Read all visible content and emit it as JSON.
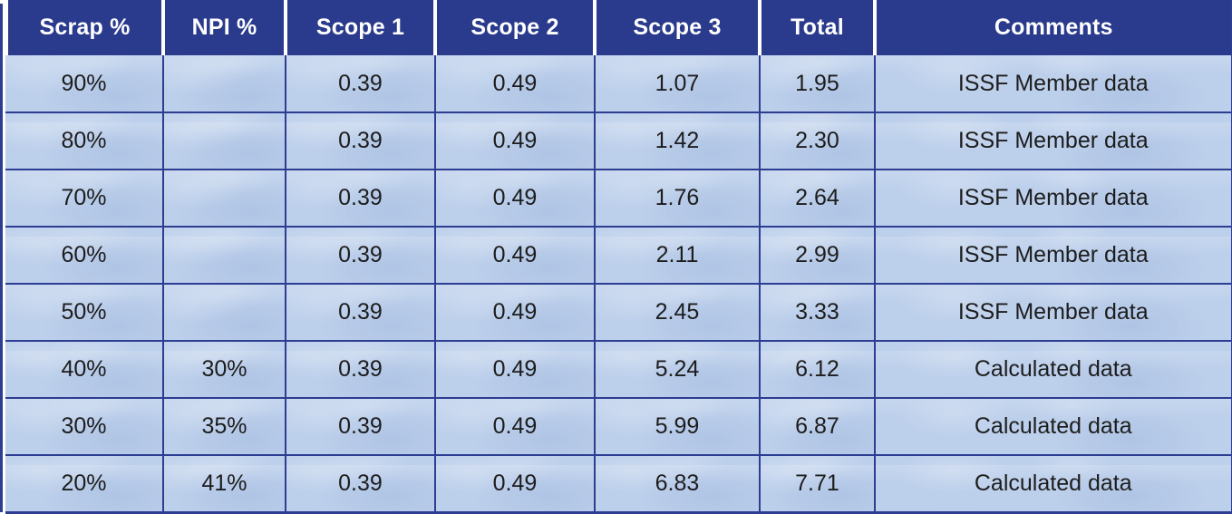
{
  "colors": {
    "page_bg": "#ffffff",
    "header_bg": "#2a3a8c",
    "header_text": "#ffffff",
    "grid_line": "#2c3d92",
    "cell_bg": "#bccfeb",
    "cell_text": "#1d1d1d"
  },
  "table": {
    "columns": [
      {
        "key": "scrap",
        "label": "Scrap %"
      },
      {
        "key": "npi",
        "label": "NPI %"
      },
      {
        "key": "scope1",
        "label": "Scope 1"
      },
      {
        "key": "scope2",
        "label": "Scope 2"
      },
      {
        "key": "scope3",
        "label": "Scope 3"
      },
      {
        "key": "total",
        "label": "Total"
      },
      {
        "key": "comments",
        "label": "Comments"
      }
    ],
    "rows": [
      [
        "90%",
        "",
        "0.39",
        "0.49",
        "1.07",
        "1.95",
        "ISSF Member data"
      ],
      [
        "80%",
        "",
        "0.39",
        "0.49",
        "1.42",
        "2.30",
        "ISSF Member data"
      ],
      [
        "70%",
        "",
        "0.39",
        "0.49",
        "1.76",
        "2.64",
        "ISSF Member data"
      ],
      [
        "60%",
        "",
        "0.39",
        "0.49",
        "2.11",
        "2.99",
        "ISSF Member data"
      ],
      [
        "50%",
        "",
        "0.39",
        "0.49",
        "2.45",
        "3.33",
        "ISSF Member data"
      ],
      [
        "40%",
        "30%",
        "0.39",
        "0.49",
        "5.24",
        "6.12",
        "Calculated data"
      ],
      [
        "30%",
        "35%",
        "0.39",
        "0.49",
        "5.99",
        "6.87",
        "Calculated data"
      ],
      [
        "20%",
        "41%",
        "0.39",
        "0.49",
        "6.83",
        "7.71",
        "Calculated data"
      ]
    ]
  }
}
